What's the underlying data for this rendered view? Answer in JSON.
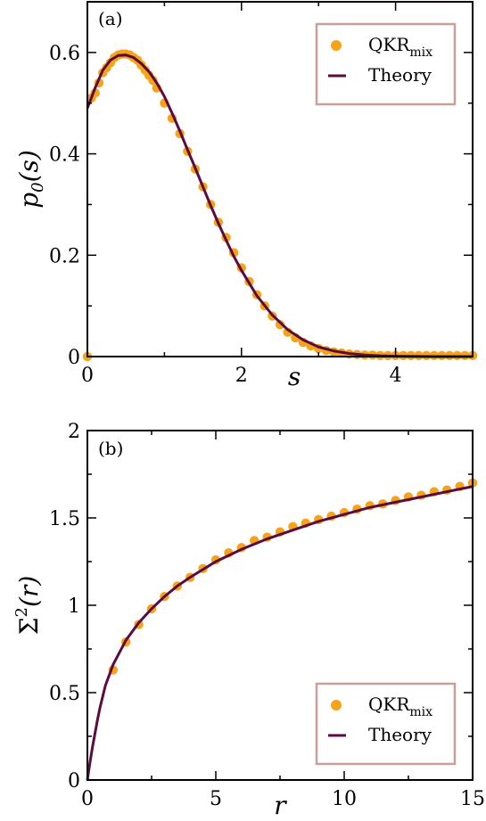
{
  "chart_data": [
    {
      "panel": "(a)",
      "type": "scatter",
      "xlabel": "s",
      "ylabel_main": "p",
      "ylabel_sub": "0",
      "ylabel_rest": "(s)",
      "xlim": [
        0,
        5
      ],
      "ylim": [
        0,
        0.7
      ],
      "xticks": [
        0,
        2,
        4
      ],
      "xtick_labels": [
        "0",
        "2",
        "4"
      ],
      "yticks": [
        0,
        0.2,
        0.4,
        0.6
      ],
      "ytick_labels": [
        "0",
        "0.2",
        "0.4",
        "0.6"
      ],
      "legend": {
        "placement": "top-right",
        "entries": [
          {
            "main": "QKR",
            "sub": "mix",
            "marker": "circle"
          },
          {
            "main": "Theory",
            "sub": "",
            "marker": "line"
          }
        ]
      },
      "scatter_series": {
        "name": "QKR_mix",
        "x": [
          0.0,
          0.05,
          0.1,
          0.15,
          0.2,
          0.25,
          0.3,
          0.35,
          0.4,
          0.45,
          0.5,
          0.55,
          0.6,
          0.65,
          0.7,
          0.75,
          0.8,
          0.85,
          0.9,
          1.0,
          1.1,
          1.2,
          1.3,
          1.4,
          1.5,
          1.6,
          1.7,
          1.8,
          1.9,
          2.0,
          2.1,
          2.2,
          2.3,
          2.4,
          2.5,
          2.6,
          2.7,
          2.8,
          2.9,
          3.0,
          3.1,
          3.2,
          3.3,
          3.4,
          3.5,
          3.6,
          3.7,
          3.8,
          3.9,
          4.0,
          4.1,
          4.2,
          4.3,
          4.4,
          4.5,
          4.6,
          4.7,
          4.8,
          4.9,
          5.0
        ],
        "y": [
          0.0,
          0.51,
          0.52,
          0.54,
          0.56,
          0.57,
          0.58,
          0.59,
          0.595,
          0.597,
          0.597,
          0.595,
          0.59,
          0.585,
          0.575,
          0.565,
          0.555,
          0.545,
          0.53,
          0.5,
          0.47,
          0.44,
          0.405,
          0.37,
          0.335,
          0.3,
          0.265,
          0.235,
          0.205,
          0.175,
          0.148,
          0.122,
          0.1,
          0.08,
          0.063,
          0.048,
          0.037,
          0.028,
          0.021,
          0.016,
          0.012,
          0.009,
          0.007,
          0.005,
          0.004,
          0.003,
          0.003,
          0.002,
          0.002,
          0.002,
          0.002,
          0.002,
          0.002,
          0.002,
          0.002,
          0.002,
          0.002,
          0.002,
          0.002,
          0.002
        ]
      },
      "theory_series": {
        "name": "Theory",
        "x": [
          0.0,
          0.1,
          0.2,
          0.3,
          0.4,
          0.5,
          0.6,
          0.7,
          0.8,
          0.9,
          1.0,
          1.1,
          1.2,
          1.3,
          1.4,
          1.5,
          1.6,
          1.7,
          1.8,
          1.9,
          2.0,
          2.2,
          2.4,
          2.6,
          2.8,
          3.0,
          3.2,
          3.4,
          3.6,
          3.8,
          4.0,
          4.5,
          5.0
        ],
        "y": [
          0.49,
          0.53,
          0.565,
          0.585,
          0.594,
          0.595,
          0.59,
          0.578,
          0.562,
          0.54,
          0.513,
          0.48,
          0.445,
          0.408,
          0.372,
          0.335,
          0.298,
          0.263,
          0.23,
          0.198,
          0.17,
          0.12,
          0.082,
          0.053,
          0.033,
          0.019,
          0.011,
          0.006,
          0.003,
          0.0015,
          0.0007,
          0.0001,
          0.0
        ]
      }
    },
    {
      "panel": "(b)",
      "type": "scatter",
      "xlabel": "r",
      "ylabel_main": "Σ",
      "ylabel_sup": "2",
      "ylabel_rest": "(r)",
      "xlim": [
        0,
        15
      ],
      "ylim": [
        0,
        2
      ],
      "xticks": [
        0,
        5,
        10,
        15
      ],
      "xtick_labels": [
        "0",
        "5",
        "10",
        "15"
      ],
      "yticks": [
        0,
        0.5,
        1,
        1.5,
        2
      ],
      "ytick_labels": [
        "0",
        "0.5",
        "1",
        "1.5",
        "2"
      ],
      "legend": {
        "placement": "bottom-right",
        "entries": [
          {
            "main": "QKR",
            "sub": "mix",
            "marker": "circle"
          },
          {
            "main": "Theory",
            "sub": "",
            "marker": "line"
          }
        ]
      },
      "scatter_series": {
        "name": "QKR_mix",
        "x": [
          1.0,
          1.5,
          2.0,
          2.5,
          3.0,
          3.5,
          4.0,
          4.5,
          5.0,
          5.5,
          6.0,
          6.5,
          7.0,
          7.5,
          8.0,
          8.5,
          9.0,
          9.5,
          10.0,
          10.5,
          11.0,
          11.5,
          12.0,
          12.5,
          13.0,
          13.5,
          14.0,
          14.5,
          15.0
        ],
        "y": [
          0.63,
          0.79,
          0.89,
          0.98,
          1.05,
          1.11,
          1.16,
          1.21,
          1.26,
          1.3,
          1.33,
          1.37,
          1.39,
          1.42,
          1.45,
          1.47,
          1.49,
          1.51,
          1.53,
          1.55,
          1.57,
          1.58,
          1.6,
          1.62,
          1.63,
          1.65,
          1.66,
          1.68,
          1.7
        ]
      },
      "theory_series": {
        "name": "Theory",
        "x": [
          0.0,
          0.05,
          0.1,
          0.2,
          0.3,
          0.4,
          0.5,
          0.6,
          0.7,
          0.8,
          1.0,
          1.25,
          1.5,
          2.0,
          2.5,
          3.0,
          3.5,
          4.0,
          5.0,
          6.0,
          7.0,
          8.0,
          9.0,
          10.0,
          11.0,
          12.0,
          13.0,
          14.0,
          15.0
        ],
        "y": [
          0.0,
          0.05,
          0.1,
          0.19,
          0.27,
          0.35,
          0.42,
          0.48,
          0.54,
          0.58,
          0.66,
          0.73,
          0.8,
          0.9,
          0.98,
          1.05,
          1.11,
          1.16,
          1.25,
          1.32,
          1.38,
          1.43,
          1.48,
          1.52,
          1.56,
          1.59,
          1.62,
          1.65,
          1.68
        ]
      }
    }
  ],
  "colors": {
    "scatter": "#f5a319",
    "theory": "#5c0b3e",
    "legend_border": "#c79f9b",
    "frame": "#000000"
  }
}
